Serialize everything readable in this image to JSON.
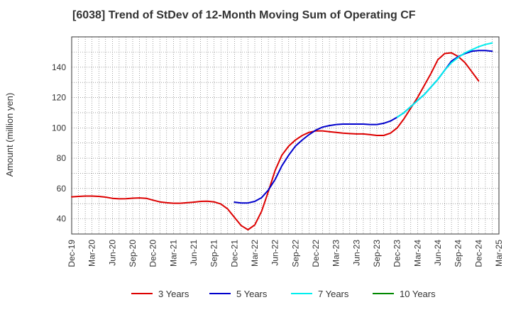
{
  "chart_data": {
    "type": "line",
    "title": "[6038]  Trend of StDev of 12-Month Moving Sum of Operating CF",
    "xlabel": "",
    "ylabel": "Amount (million yen)",
    "ylim": [
      30,
      160
    ],
    "yticks": [
      40,
      60,
      80,
      100,
      120,
      140
    ],
    "grid": true,
    "legend_position": "bottom",
    "x_tick_labels": [
      "Dec-19",
      "Mar-20",
      "Jun-20",
      "Sep-20",
      "Dec-20",
      "Mar-21",
      "Jun-21",
      "Sep-21",
      "Dec-21",
      "Mar-22",
      "Jun-22",
      "Sep-22",
      "Dec-22",
      "Mar-23",
      "Jun-23",
      "Sep-23",
      "Dec-23",
      "Mar-24",
      "Jun-24",
      "Sep-24",
      "Dec-24",
      "Mar-25"
    ],
    "x_months": [
      "2019-12",
      "2020-01",
      "2020-02",
      "2020-03",
      "2020-04",
      "2020-05",
      "2020-06",
      "2020-07",
      "2020-08",
      "2020-09",
      "2020-10",
      "2020-11",
      "2020-12",
      "2021-01",
      "2021-02",
      "2021-03",
      "2021-04",
      "2021-05",
      "2021-06",
      "2021-07",
      "2021-08",
      "2021-09",
      "2021-10",
      "2021-11",
      "2021-12",
      "2022-01",
      "2022-02",
      "2022-03",
      "2022-04",
      "2022-05",
      "2022-06",
      "2022-07",
      "2022-08",
      "2022-09",
      "2022-10",
      "2022-11",
      "2022-12",
      "2023-01",
      "2023-02",
      "2023-03",
      "2023-04",
      "2023-05",
      "2023-06",
      "2023-07",
      "2023-08",
      "2023-09",
      "2023-10",
      "2023-11",
      "2023-12",
      "2024-01",
      "2024-02",
      "2024-03",
      "2024-04",
      "2024-05",
      "2024-06",
      "2024-07",
      "2024-08",
      "2024-09",
      "2024-10",
      "2024-11",
      "2024-12"
    ],
    "series": [
      {
        "name": "3 Years",
        "color": "#dd0000",
        "start_index": 0,
        "values": [
          54.5,
          54.8,
          55,
          55,
          54.8,
          54.3,
          53.5,
          53.2,
          53.3,
          53.6,
          53.8,
          53.5,
          52.3,
          51.2,
          50.6,
          50.3,
          50.3,
          50.6,
          51,
          51.5,
          51.6,
          51.2,
          49.8,
          46.5,
          41,
          35.5,
          32.8,
          36,
          45,
          58,
          72,
          82,
          88,
          92,
          95,
          97,
          98,
          98,
          97.5,
          97,
          96.5,
          96.2,
          96,
          96,
          95.5,
          95,
          95,
          96.5,
          100,
          106,
          113,
          120,
          128,
          136,
          145,
          149,
          149.5,
          147,
          143,
          137,
          131
        ]
      },
      {
        "name": "5 Years",
        "color": "#0000cc",
        "start_index": 24,
        "values": [
          51,
          50.5,
          50.5,
          51.5,
          54,
          59,
          66,
          75,
          82,
          88,
          92,
          95.5,
          98.5,
          100.5,
          101.5,
          102.2,
          102.5,
          102.5,
          102.5,
          102.5,
          102.2,
          102.2,
          103,
          104.5,
          107,
          110,
          114,
          118,
          122,
          127,
          132,
          138,
          144,
          147,
          149,
          150.5,
          151,
          151,
          150.5
        ]
      },
      {
        "name": "7 Years",
        "color": "#00eeee",
        "start_index": 48,
        "values": [
          107,
          110,
          114,
          118,
          122,
          127,
          132,
          138,
          143,
          146.5,
          149.5,
          151.5,
          153.5,
          155,
          156
        ]
      },
      {
        "name": "10 Years",
        "color": "#008800",
        "start_index": 0,
        "values": []
      }
    ]
  }
}
